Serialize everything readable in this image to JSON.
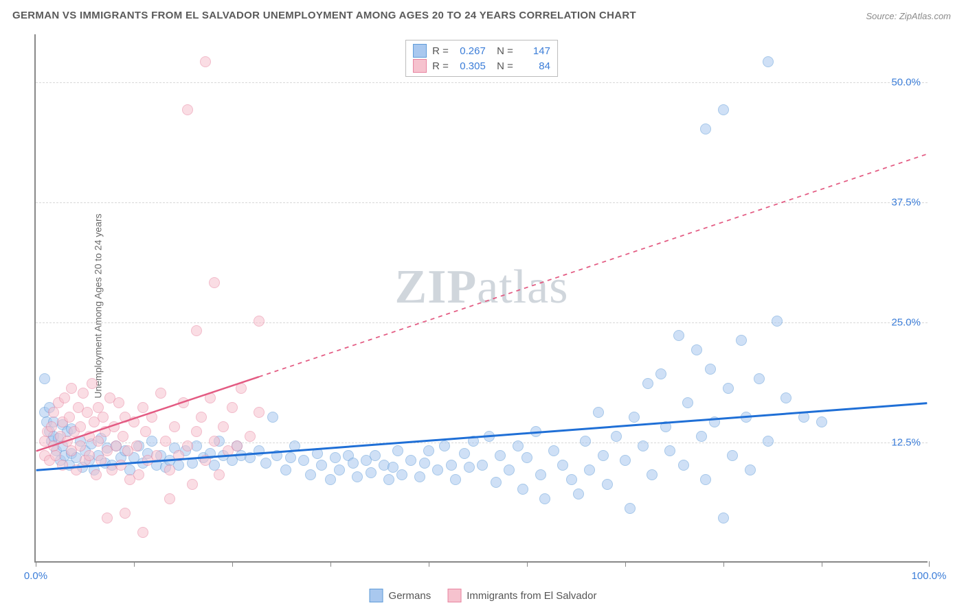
{
  "title": "GERMAN VS IMMIGRANTS FROM EL SALVADOR UNEMPLOYMENT AMONG AGES 20 TO 24 YEARS CORRELATION CHART",
  "source": "Source: ZipAtlas.com",
  "y_axis_label": "Unemployment Among Ages 20 to 24 years",
  "watermark": {
    "bold": "ZIP",
    "light": "atlas"
  },
  "plot": {
    "type": "scatter",
    "xlim": [
      0,
      100
    ],
    "ylim": [
      0,
      55
    ],
    "x_ticks": [
      0,
      11,
      22,
      33,
      44,
      55,
      66,
      77,
      88,
      100
    ],
    "x_tick_labels": {
      "0": "0.0%",
      "100": "100.0%"
    },
    "y_gridlines": [
      12.5,
      25.0,
      37.5,
      50.0
    ],
    "y_tick_labels": [
      "12.5%",
      "25.0%",
      "37.5%",
      "50.0%"
    ],
    "grid_color": "#d8d8d8",
    "background_color": "#ffffff",
    "axis_color": "#888888",
    "tick_label_color": "#3b7dd8",
    "marker_radius": 8,
    "marker_opacity": 0.55
  },
  "series": [
    {
      "name": "Germans",
      "color_fill": "#a9c8ef",
      "color_stroke": "#5f9bd8",
      "trend": {
        "x1": 0,
        "y1": 9.5,
        "x2": 100,
        "y2": 16.5,
        "color": "#1f6fd6",
        "width": 3,
        "solid_to_x": 100
      },
      "R": "0.267",
      "N": "147",
      "points": [
        [
          1,
          19
        ],
        [
          1,
          15.5
        ],
        [
          1.2,
          14.5
        ],
        [
          1.5,
          16
        ],
        [
          1.5,
          13.5
        ],
        [
          1.8,
          12.5
        ],
        [
          2,
          13
        ],
        [
          2,
          14.5
        ],
        [
          2.3,
          11.5
        ],
        [
          2.5,
          12.8
        ],
        [
          2.8,
          10.5
        ],
        [
          3,
          12
        ],
        [
          3,
          14.2
        ],
        [
          3.2,
          11
        ],
        [
          3.5,
          13.5
        ],
        [
          3.8,
          10
        ],
        [
          4,
          11.2
        ],
        [
          4,
          13.8
        ],
        [
          4.5,
          10.8
        ],
        [
          5,
          12.5
        ],
        [
          5.2,
          9.8
        ],
        [
          5.5,
          11.5
        ],
        [
          6,
          10.5
        ],
        [
          6.2,
          12.2
        ],
        [
          6.5,
          9.5
        ],
        [
          7,
          11
        ],
        [
          7.3,
          12.8
        ],
        [
          7.8,
          10.2
        ],
        [
          8,
          11.8
        ],
        [
          8.5,
          10
        ],
        [
          9,
          12
        ],
        [
          9.5,
          10.8
        ],
        [
          10,
          11.5
        ],
        [
          10.5,
          9.5
        ],
        [
          11,
          10.8
        ],
        [
          11.5,
          12
        ],
        [
          12,
          10.2
        ],
        [
          12.5,
          11.2
        ],
        [
          13,
          12.5
        ],
        [
          13.5,
          10
        ],
        [
          14,
          11
        ],
        [
          14.5,
          9.8
        ],
        [
          15,
          10.5
        ],
        [
          15.5,
          11.8
        ],
        [
          16,
          10
        ],
        [
          16.8,
          11.5
        ],
        [
          17.5,
          10.2
        ],
        [
          18,
          12
        ],
        [
          18.8,
          10.8
        ],
        [
          19.5,
          11.2
        ],
        [
          20,
          10
        ],
        [
          20.5,
          12.5
        ],
        [
          21,
          11
        ],
        [
          22,
          10.5
        ],
        [
          22.5,
          12
        ],
        [
          23,
          11
        ],
        [
          24,
          10.8
        ],
        [
          25,
          11.5
        ],
        [
          25.8,
          10.2
        ],
        [
          26.5,
          15
        ],
        [
          27,
          11
        ],
        [
          28,
          9.5
        ],
        [
          28.5,
          10.8
        ],
        [
          29,
          12
        ],
        [
          30,
          10.5
        ],
        [
          30.8,
          9
        ],
        [
          31.5,
          11.2
        ],
        [
          32,
          10
        ],
        [
          33,
          8.5
        ],
        [
          33.5,
          10.8
        ],
        [
          34,
          9.5
        ],
        [
          35,
          11
        ],
        [
          35.5,
          10.2
        ],
        [
          36,
          8.8
        ],
        [
          37,
          10.5
        ],
        [
          37.5,
          9.2
        ],
        [
          38,
          11
        ],
        [
          39,
          10
        ],
        [
          39.5,
          8.5
        ],
        [
          40,
          9.8
        ],
        [
          40.5,
          11.5
        ],
        [
          41,
          9
        ],
        [
          42,
          10.5
        ],
        [
          43,
          8.8
        ],
        [
          43.5,
          10.2
        ],
        [
          44,
          11.5
        ],
        [
          45,
          9.5
        ],
        [
          45.8,
          12
        ],
        [
          46.5,
          10
        ],
        [
          47,
          8.5
        ],
        [
          48,
          11.2
        ],
        [
          48.5,
          9.8
        ],
        [
          49,
          12.5
        ],
        [
          50,
          10
        ],
        [
          50.8,
          13
        ],
        [
          51.5,
          8.2
        ],
        [
          52,
          11
        ],
        [
          53,
          9.5
        ],
        [
          54,
          12
        ],
        [
          54.5,
          7.5
        ],
        [
          55,
          10.8
        ],
        [
          56,
          13.5
        ],
        [
          56.5,
          9
        ],
        [
          57,
          6.5
        ],
        [
          58,
          11.5
        ],
        [
          59,
          10
        ],
        [
          60,
          8.5
        ],
        [
          60.8,
          7
        ],
        [
          61.5,
          12.5
        ],
        [
          62,
          9.5
        ],
        [
          63,
          15.5
        ],
        [
          63.5,
          11
        ],
        [
          64,
          8
        ],
        [
          65,
          13
        ],
        [
          66,
          10.5
        ],
        [
          66.5,
          5.5
        ],
        [
          67,
          15
        ],
        [
          68,
          12
        ],
        [
          68.5,
          18.5
        ],
        [
          69,
          9
        ],
        [
          70,
          19.5
        ],
        [
          70.5,
          14
        ],
        [
          71,
          11.5
        ],
        [
          72,
          23.5
        ],
        [
          72.5,
          10
        ],
        [
          73,
          16.5
        ],
        [
          74,
          22
        ],
        [
          74.5,
          13
        ],
        [
          75,
          8.5
        ],
        [
          75.5,
          20
        ],
        [
          76,
          14.5
        ],
        [
          77,
          4.5
        ],
        [
          77.5,
          18
        ],
        [
          78,
          11
        ],
        [
          79,
          23
        ],
        [
          79.5,
          15
        ],
        [
          80,
          9.5
        ],
        [
          81,
          19
        ],
        [
          82,
          12.5
        ],
        [
          83,
          25
        ],
        [
          84,
          17
        ],
        [
          86,
          15
        ],
        [
          88,
          14.5
        ],
        [
          75,
          45
        ],
        [
          77,
          47
        ],
        [
          82,
          52
        ]
      ]
    },
    {
      "name": "Immigrants from El Salvador",
      "color_fill": "#f6c2ce",
      "color_stroke": "#e884a0",
      "trend": {
        "x1": 0,
        "y1": 11.5,
        "x2": 100,
        "y2": 42.5,
        "color": "#e35a82",
        "width": 2.5,
        "solid_to_x": 25
      },
      "R": "0.305",
      "N": "84",
      "points": [
        [
          1,
          11
        ],
        [
          1,
          12.5
        ],
        [
          1.3,
          13.5
        ],
        [
          1.5,
          10.5
        ],
        [
          1.8,
          14
        ],
        [
          2,
          12
        ],
        [
          2,
          15.5
        ],
        [
          2.2,
          11
        ],
        [
          2.5,
          16.5
        ],
        [
          2.8,
          13
        ],
        [
          3,
          14.5
        ],
        [
          3,
          10
        ],
        [
          3.2,
          17
        ],
        [
          3.5,
          12.5
        ],
        [
          3.8,
          15
        ],
        [
          4,
          11.5
        ],
        [
          4,
          18
        ],
        [
          4.3,
          13.5
        ],
        [
          4.5,
          9.5
        ],
        [
          4.8,
          16
        ],
        [
          5,
          14
        ],
        [
          5,
          12
        ],
        [
          5.3,
          17.5
        ],
        [
          5.5,
          10.5
        ],
        [
          5.8,
          15.5
        ],
        [
          6,
          13
        ],
        [
          6,
          11
        ],
        [
          6.3,
          18.5
        ],
        [
          6.5,
          14.5
        ],
        [
          6.8,
          9
        ],
        [
          7,
          16
        ],
        [
          7,
          12.5
        ],
        [
          7.3,
          10.5
        ],
        [
          7.5,
          15
        ],
        [
          7.8,
          13.5
        ],
        [
          8,
          11.5
        ],
        [
          8.3,
          17
        ],
        [
          8.5,
          9.5
        ],
        [
          8.8,
          14
        ],
        [
          9,
          12
        ],
        [
          9.3,
          16.5
        ],
        [
          9.5,
          10
        ],
        [
          9.8,
          13
        ],
        [
          10,
          15
        ],
        [
          10.3,
          11.5
        ],
        [
          10.5,
          8.5
        ],
        [
          11,
          14.5
        ],
        [
          11.3,
          12
        ],
        [
          11.5,
          9
        ],
        [
          12,
          16
        ],
        [
          12.3,
          13.5
        ],
        [
          12.5,
          10.5
        ],
        [
          13,
          15
        ],
        [
          13.5,
          11
        ],
        [
          14,
          17.5
        ],
        [
          14.5,
          12.5
        ],
        [
          15,
          9.5
        ],
        [
          15.5,
          14
        ],
        [
          16,
          11
        ],
        [
          16.5,
          16.5
        ],
        [
          17,
          12
        ],
        [
          17.5,
          8
        ],
        [
          18,
          13.5
        ],
        [
          18.5,
          15
        ],
        [
          19,
          10.5
        ],
        [
          19.5,
          17
        ],
        [
          20,
          12.5
        ],
        [
          20.5,
          9
        ],
        [
          21,
          14
        ],
        [
          21.5,
          11.5
        ],
        [
          22,
          16
        ],
        [
          22.5,
          12
        ],
        [
          23,
          18
        ],
        [
          24,
          13
        ],
        [
          25,
          15.5
        ],
        [
          18,
          24
        ],
        [
          17,
          47
        ],
        [
          19,
          52
        ],
        [
          20,
          29
        ],
        [
          25,
          25
        ],
        [
          12,
          3
        ],
        [
          10,
          5
        ],
        [
          15,
          6.5
        ],
        [
          8,
          4.5
        ]
      ]
    }
  ],
  "legend_bottom": [
    {
      "label": "Germans",
      "fill": "#a9c8ef",
      "stroke": "#5f9bd8"
    },
    {
      "label": "Immigrants from El Salvador",
      "fill": "#f6c2ce",
      "stroke": "#e884a0"
    }
  ]
}
